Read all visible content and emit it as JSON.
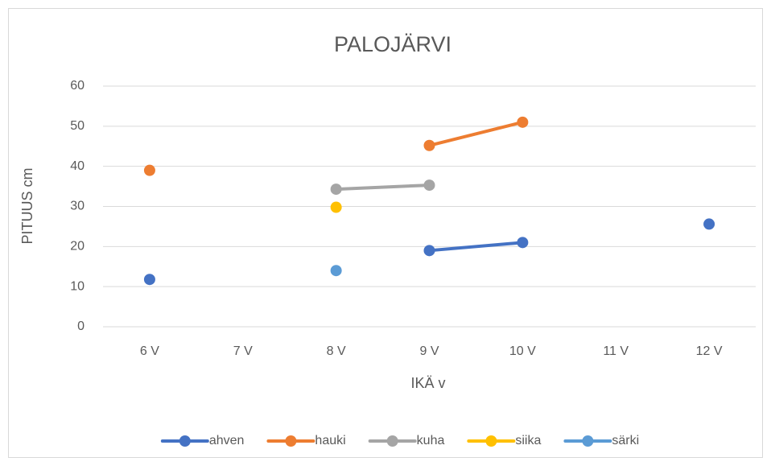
{
  "chart_data": {
    "type": "line",
    "title": "PALOJÄRVI",
    "x_label": "IKÄ v",
    "y_label": "PITUUS cm",
    "categories": [
      "6 V",
      "7 V",
      "8 V",
      "9 V",
      "10 V",
      "11 V",
      "12 V"
    ],
    "series": [
      {
        "name": "ahven",
        "color": "#4472c4",
        "values": [
          11.8,
          null,
          null,
          19,
          21,
          null,
          25.6
        ]
      },
      {
        "name": "hauki",
        "color": "#ed7d31",
        "values": [
          39,
          null,
          null,
          45.2,
          51,
          null,
          null
        ]
      },
      {
        "name": "kuha",
        "color": "#a5a5a5",
        "values": [
          null,
          null,
          34.3,
          35.3,
          null,
          null,
          null
        ]
      },
      {
        "name": "siika",
        "color": "#ffc000",
        "values": [
          null,
          null,
          29.8,
          null,
          null,
          null,
          null
        ]
      },
      {
        "name": "särki",
        "color": "#5b9bd5",
        "values": [
          null,
          null,
          14,
          null,
          null,
          null,
          null
        ]
      }
    ],
    "ylim": [
      0,
      60
    ],
    "yticks": [
      0,
      10,
      20,
      30,
      40,
      50,
      60
    ],
    "grid": true,
    "legend": "bottom"
  }
}
